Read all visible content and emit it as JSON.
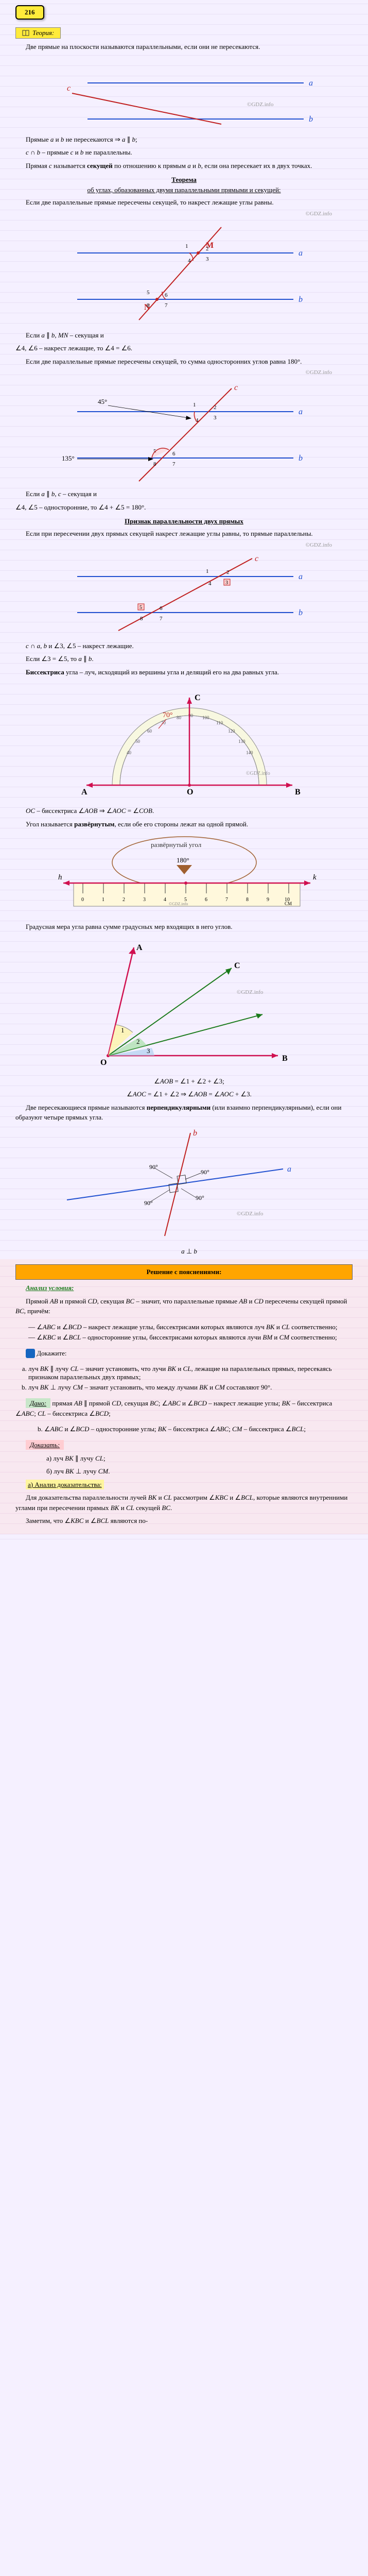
{
  "badge": "216",
  "theory_label": "Теория:",
  "watermark": "©GDZ.info",
  "section1": {
    "p1": "Две прямые на плоскости называются параллельными, если они не пересекаются."
  },
  "diag1": {
    "line_a": "a",
    "line_b": "b",
    "line_c": "c",
    "color_a": "#2050d0",
    "color_b": "#2050d0",
    "color_c": "#c02020"
  },
  "section2": {
    "p1_html": "Прямые <i>a</i> и <i>b</i> не пересекаются ⇒ <i>a</i> ∥ <i>b</i>;",
    "p2_html": "<i>c</i> ∩ <i>b</i> – прямые <i>c</i> и <i>b</i> не параллельны.",
    "p3_html": "Прямая <i>c</i> называется <b>секущей</b> по отношению к прямым <i>a</i> и <i>b</i>, если она пересекает их в двух точках."
  },
  "theorem1": {
    "title": "Теорема",
    "subtitle": "об углах, образованных двумя параллельными прямыми и секущей:",
    "p1": "Если две параллельные прямые пересечены секущей, то накрест лежащие углы равны."
  },
  "diag2": {
    "M": "M",
    "N": "N",
    "line_a": "a",
    "line_b": "b",
    "angles": [
      "1",
      "2",
      "3",
      "4",
      "5",
      "6",
      "7",
      "8"
    ]
  },
  "section3": {
    "p1_html": "Если <i>a</i> ∥ <i>b</i>, <i>MN</i> – секущая и",
    "p2_html": "∠4, ∠6 – накрест лежащие, то ∠4 = ∠6.",
    "p3_html": "Если две параллельные прямые пересечены секущей, то сумма односторонних углов равна 180°."
  },
  "diag3": {
    "angle1": "135°",
    "angle2": "45°",
    "labels": [
      "1",
      "2",
      "3",
      "4",
      "5",
      "6",
      "7",
      "8"
    ],
    "line_a": "a",
    "line_b": "b",
    "line_c": "c"
  },
  "section4": {
    "p1_html": "Если <i>a</i> ∥ <i>b</i>, <i>c</i> – секущая и",
    "p2_html": "∠4, ∠5 – односторонние, то ∠4 + ∠5 = 180°."
  },
  "theorem2": {
    "title": "Признак параллельности двух прямых",
    "p1": "Если при пересечении двух прямых секущей накрест лежащие углы равны, то прямые параллельны."
  },
  "diag4": {
    "line_a": "a",
    "line_b": "b",
    "line_c": "c",
    "labels": [
      "1",
      "2",
      "3",
      "4",
      "5",
      "6",
      "7",
      "8"
    ]
  },
  "section5": {
    "p1_html": "<i>c</i> ∩ <i>a</i>, <i>b</i> и ∠3, ∠5 – накрест лежащие.",
    "p2_html": "Если ∠3 = ∠5, то <i>a</i> ∥ <i>b</i>.",
    "p3_html": "<b>Биссектриса</b> угла – луч, исходящий из вершины угла и делящий его на два равных угла."
  },
  "diag5": {
    "O": "O",
    "A": "A",
    "B": "B",
    "C": "C",
    "angle": "70°",
    "marks": [
      "40",
      "50",
      "60",
      "70",
      "80",
      "90",
      "100",
      "110",
      "120",
      "130",
      "140"
    ]
  },
  "section6": {
    "p1_html": "<i>OC</i> – биссектриса ∠<i>AOB</i> ⇒ ∠<i>AOC</i> = ∠<i>COB</i>.",
    "p2_html": "Угол называется <b>развёрнутым</b>, если обе его стороны лежат на одной прямой."
  },
  "diag6": {
    "label": "развёрнутый угол",
    "angle": "180°",
    "h": "h",
    "k": "k",
    "ruler_marks": [
      "0",
      "1",
      "2",
      "3",
      "4",
      "5",
      "6",
      "7",
      "8",
      "9",
      "10",
      "11"
    ],
    "ruler_label": "CM"
  },
  "section7": {
    "p1": "Градусная мера угла равна сумме градусных мер входящих в него углов."
  },
  "diag7": {
    "O": "O",
    "A": "A",
    "B": "B",
    "C": "C",
    "nums": [
      "1",
      "2",
      "3"
    ]
  },
  "section8": {
    "p1_html": "∠<i>AOB</i> = ∠1 + ∠2 + ∠3;",
    "p2_html": "∠<i>AOC</i> = ∠1 + ∠2 ⇒ ∠<i>AOB</i> = ∠<i>AOC</i> + ∠3.",
    "p3_html": "Две пересекающиеся прямые называются <b>перпендикулярными</b> (или взаимно перпендикулярными), если они образуют четыре прямых угла."
  },
  "diag8": {
    "line_a": "a",
    "line_b": "b",
    "angles": [
      "90°",
      "90°",
      "90°",
      "90°"
    ]
  },
  "section9": {
    "p1_html": "<i>a</i> ⊥ <i>b</i>"
  },
  "solution": {
    "header": "Решение с пояснениями:",
    "analysis": "Анализ условия:",
    "p1_html": "Прямой <i>AB</i> и прямой <i>CD</i>, секущая <i>BC</i> – значит, что параллельные прямые <i>AB</i> и <i>CD</i> пересечены секущей прямой <i>BC</i>, причём:",
    "li1_html": "∠<i>ABC</i> и ∠<i>BCD</i> – накрест лежащие углы, биссектрисами которых являются луч <i>BK</i> и <i>CL</i> соответственно;",
    "li2_html": "∠<i>KBC</i> и ∠<i>BCL</i> – односторонние углы, биссектрисами которых являются лучи <i>BM</i> и <i>CM</i> соответственно;",
    "q_label": "Докажите:",
    "li_a_html": "луч <i>BK</i> ∥ лучу <i>CL</i> – значит установить, что лучи <i>BK</i> и <i>CL</i>, лежащие на параллельных прямых, пересекаясь признаком параллельных двух прямых;",
    "li_b_html": "луч <i>BK</i> ⊥ лучу <i>CM</i> – значит установить, что между лучами <i>BK</i> и <i>CM</i> составляют 90°.",
    "given": "Дано:",
    "given_text_html": "прямая <i>AB</i> ∥ прямой <i>CD</i>, секущая <i>BC</i>; ∠<i>ABC</i> и ∠<i>BCD</i> – накрест лежащие углы; <i>BK</i> – биссектриса ∠<i>ABC</i>; <i>CL</i> – биссектриса ∠<i>BCD</i>;",
    "li_b2_html": "∠<i>ABC</i> и ∠<i>BCD</i> – односторонние углы; <i>BK</i> – биссектриса ∠<i>ABC</i>; <i>CM</i> – биссектриса ∠<i>BCL</i>;",
    "prove": "Доказать:",
    "prove_a_html": "луч <i>BK</i> ∥ лучу <i>CL</i>;",
    "prove_b_html": "луч <i>BK</i> ⊥ лучу <i>CM</i>.",
    "proof_analysis": "а) Анализ доказательства:",
    "proof_p1_html": "Для доказательства параллельности лучей <i>BK</i> и <i>CL</i> рассмотрим ∠<i>KBC</i> и ∠<i>BCL</i>, которые являются внутренними углами при пересечении прямых <i>BK</i> и <i>CL</i> секущей <i>BC</i>.",
    "proof_p2_html": "Заметим, что ∠<i>KBC</i> и ∠<i>BCL</i> являются по-"
  }
}
